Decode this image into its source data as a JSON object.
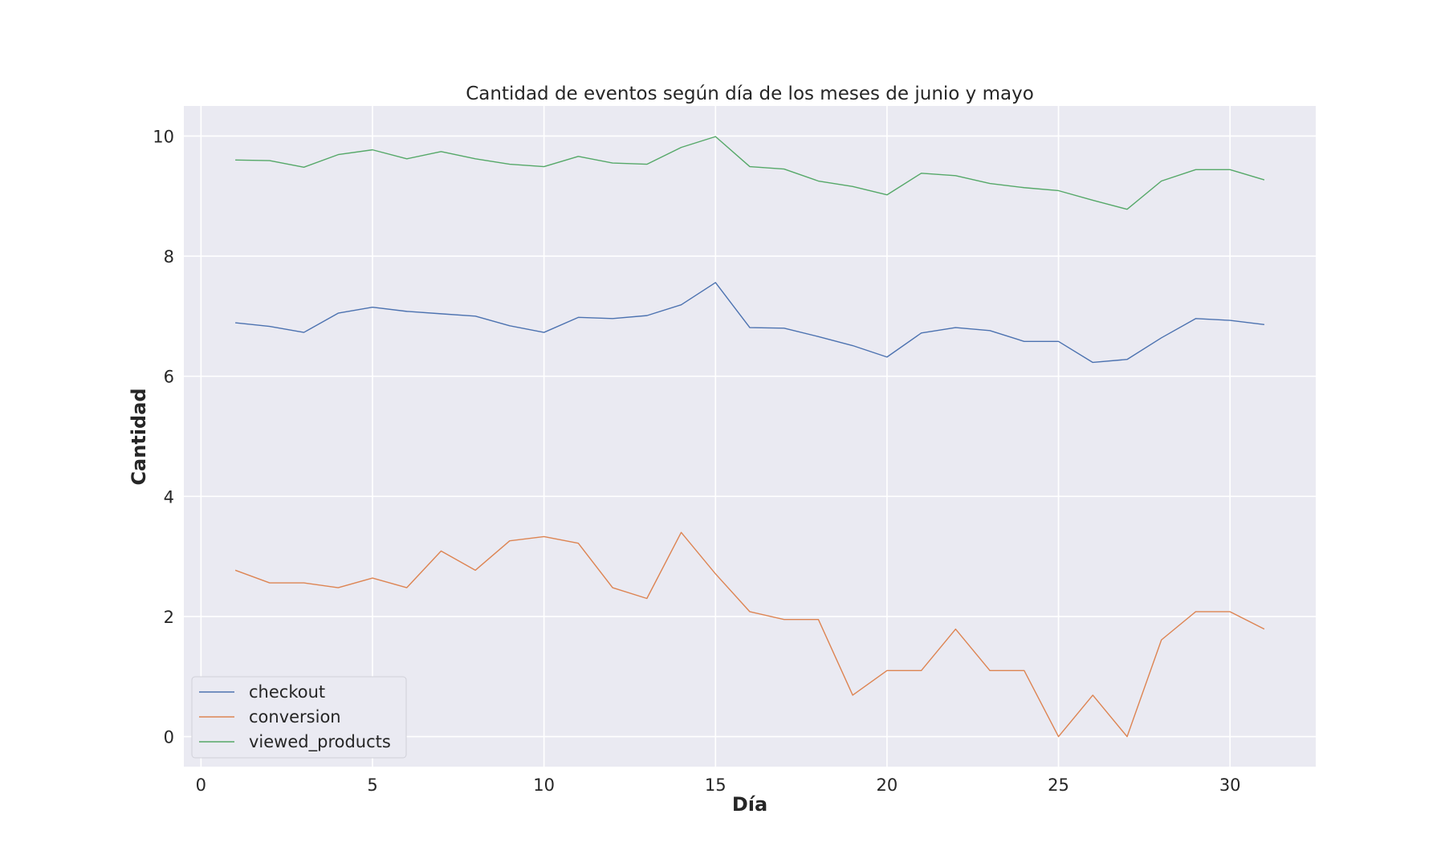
{
  "chart_data": {
    "type": "line",
    "title": "Cantidad de eventos según día de los meses de junio y mayo",
    "xlabel": "Día",
    "ylabel": "Cantidad",
    "xlim": [
      -0.5,
      32.5
    ],
    "ylim": [
      -0.5,
      10.5
    ],
    "xticks": [
      0,
      5,
      10,
      15,
      20,
      25,
      30
    ],
    "xtick_labels": [
      "0",
      "5",
      "10",
      "15",
      "20",
      "25",
      "30"
    ],
    "yticks": [
      0,
      2,
      4,
      6,
      8,
      10
    ],
    "ytick_labels": [
      "0",
      "2",
      "4",
      "6",
      "8",
      "10"
    ],
    "grid": true,
    "legend_position": "lower-left",
    "x": [
      1,
      2,
      3,
      4,
      5,
      6,
      7,
      8,
      9,
      10,
      11,
      12,
      13,
      14,
      15,
      16,
      17,
      18,
      19,
      20,
      21,
      22,
      23,
      24,
      25,
      26,
      27,
      28,
      29,
      30,
      31
    ],
    "series": [
      {
        "name": "checkout",
        "color": "#4c72b0",
        "values": [
          6.89,
          6.83,
          6.73,
          7.05,
          7.15,
          7.08,
          7.04,
          7.0,
          6.84,
          6.73,
          6.98,
          6.96,
          7.01,
          7.19,
          7.56,
          6.81,
          6.8,
          6.66,
          6.51,
          6.32,
          6.72,
          6.81,
          6.76,
          6.58,
          6.58,
          6.23,
          6.28,
          6.64,
          6.96,
          6.93,
          6.86
        ]
      },
      {
        "name": "conversion",
        "color": "#dd8452",
        "values": [
          2.77,
          2.56,
          2.56,
          2.48,
          2.64,
          2.48,
          3.09,
          2.77,
          3.26,
          3.33,
          3.22,
          2.48,
          2.3,
          3.4,
          2.71,
          2.08,
          1.95,
          1.95,
          0.69,
          1.1,
          1.1,
          1.79,
          1.1,
          1.1,
          0.0,
          0.69,
          0.0,
          1.61,
          2.08,
          2.08,
          1.79
        ]
      },
      {
        "name": "viewed_products",
        "color": "#55a868",
        "values": [
          9.6,
          9.59,
          9.48,
          9.69,
          9.77,
          9.62,
          9.74,
          9.62,
          9.53,
          9.49,
          9.66,
          9.55,
          9.53,
          9.81,
          9.99,
          9.49,
          9.45,
          9.25,
          9.16,
          9.02,
          9.38,
          9.34,
          9.21,
          9.14,
          9.09,
          8.93,
          8.78,
          9.25,
          9.44,
          9.44,
          9.27
        ]
      }
    ]
  }
}
